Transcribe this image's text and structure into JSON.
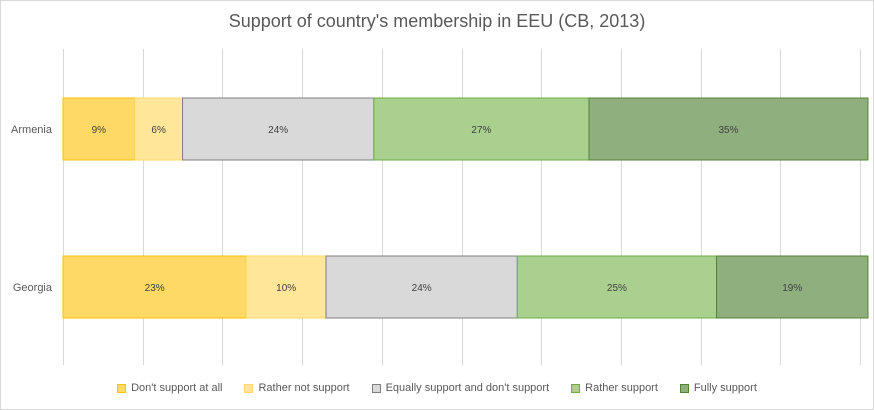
{
  "chart_data": {
    "type": "bar",
    "orientation": "horizontal",
    "stacked": true,
    "title": "Support of country's membership in EEU (CB, 2013)",
    "categories": [
      "Armenia",
      "Georgia"
    ],
    "series": [
      {
        "name": "Don't support at all",
        "values": [
          9,
          23
        ],
        "labels": [
          "9%",
          "23%"
        ],
        "color": "#ffd966",
        "border": "#ffc000"
      },
      {
        "name": "Rather not support",
        "values": [
          6,
          10
        ],
        "labels": [
          "6%",
          "10%"
        ],
        "color": "#ffe699",
        "border": "#ffd966"
      },
      {
        "name": "Equally support and don't support",
        "values": [
          24,
          24
        ],
        "labels": [
          "24%",
          "24%"
        ],
        "color": "#d9d9d9",
        "border": "#7f7f7f"
      },
      {
        "name": "Rather support",
        "values": [
          27,
          25
        ],
        "labels": [
          "27%",
          "25%"
        ],
        "color": "#a9d08e",
        "border": "#70ad47"
      },
      {
        "name": "Fully support",
        "values": [
          35,
          19
        ],
        "labels": [
          "35%",
          "19%"
        ],
        "color": "#8faf7f",
        "border": "#548235"
      }
    ],
    "xlim": [
      0,
      100
    ],
    "grid": true,
    "legend_position": "bottom"
  }
}
